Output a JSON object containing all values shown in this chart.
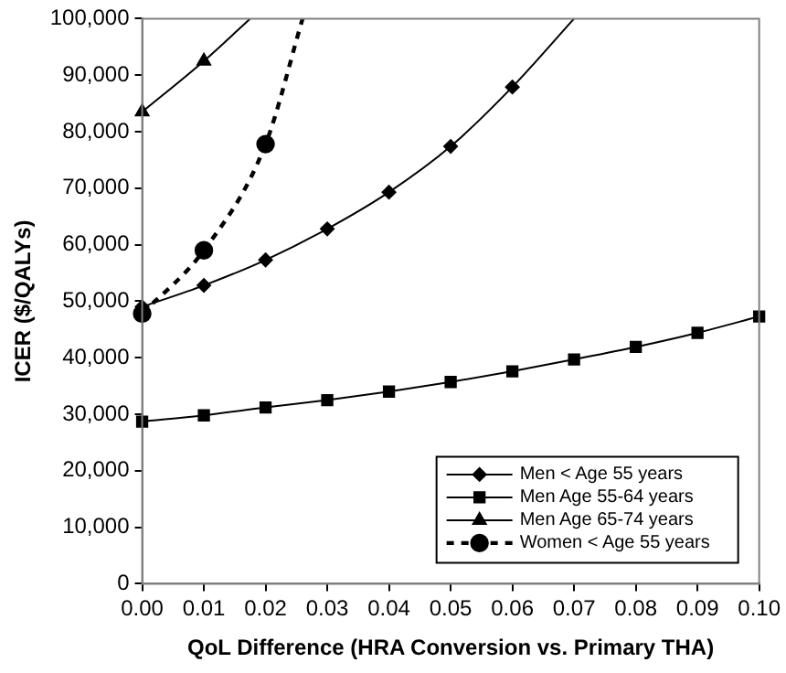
{
  "chart_data": {
    "type": "line",
    "xlabel": "QoL Difference (HRA Conversion vs. Primary THA)",
    "ylabel": "ICER ($/QALYs)",
    "xlim": [
      0,
      0.1
    ],
    "xticks": [
      {
        "value": 0,
        "label": "0.00"
      },
      {
        "value": 0.01,
        "label": "0.01"
      },
      {
        "value": 0.02,
        "label": "0.02"
      },
      {
        "value": 0.03,
        "label": "0.03"
      },
      {
        "value": 0.04,
        "label": "0.04"
      },
      {
        "value": 0.05,
        "label": "0.05"
      },
      {
        "value": 0.06,
        "label": "0.06"
      },
      {
        "value": 0.07,
        "label": "0.07"
      },
      {
        "value": 0.08,
        "label": "0.08"
      },
      {
        "value": 0.09,
        "label": "0.09"
      },
      {
        "value": 0.1,
        "label": "0.10"
      }
    ],
    "ylim": [
      0,
      100000
    ],
    "yticks": [
      {
        "value": 0,
        "label": "0"
      },
      {
        "value": 10000,
        "label": "10,000"
      },
      {
        "value": 20000,
        "label": "20,000"
      },
      {
        "value": 30000,
        "label": "30,000"
      },
      {
        "value": 40000,
        "label": "40,000"
      },
      {
        "value": 50000,
        "label": "50,000"
      },
      {
        "value": 60000,
        "label": "60,000"
      },
      {
        "value": 70000,
        "label": "70,000"
      },
      {
        "value": 80000,
        "label": "80,000"
      },
      {
        "value": 90000,
        "label": "90,000"
      },
      {
        "value": 100000,
        "label": "100,000"
      }
    ],
    "grid": false,
    "legend": "bottom right",
    "series": [
      {
        "name": "Men < Age 55 years",
        "color": "#000000",
        "marker": "diamond",
        "line_style": "solid",
        "x": [
          0,
          0.01,
          0.02,
          0.03,
          0.04,
          0.05,
          0.06,
          0.07
        ],
        "values": [
          49000,
          52800,
          57300,
          62800,
          69300,
          77400,
          87900,
          100000
        ]
      },
      {
        "name": "Men Age 55-64 years",
        "color": "#000000",
        "marker": "square",
        "line_style": "solid",
        "x": [
          0,
          0.01,
          0.02,
          0.03,
          0.04,
          0.05,
          0.06,
          0.07,
          0.08,
          0.09,
          0.1
        ],
        "values": [
          28700,
          29800,
          31200,
          32500,
          34000,
          35700,
          37600,
          39700,
          41900,
          44400,
          47300
        ]
      },
      {
        "name": "Men Age 65-74 years",
        "color": "#000000",
        "marker": "triangle",
        "line_style": "solid",
        "x": [
          0,
          0.01,
          0.0175
        ],
        "values": [
          83500,
          92500,
          100000
        ]
      },
      {
        "name": "Women < Age 55 years",
        "color": "#000000",
        "marker": "circle",
        "line_style": "dashed",
        "x": [
          0,
          0.01,
          0.02,
          0.026
        ],
        "values": [
          47800,
          59000,
          77800,
          100000
        ]
      }
    ]
  }
}
